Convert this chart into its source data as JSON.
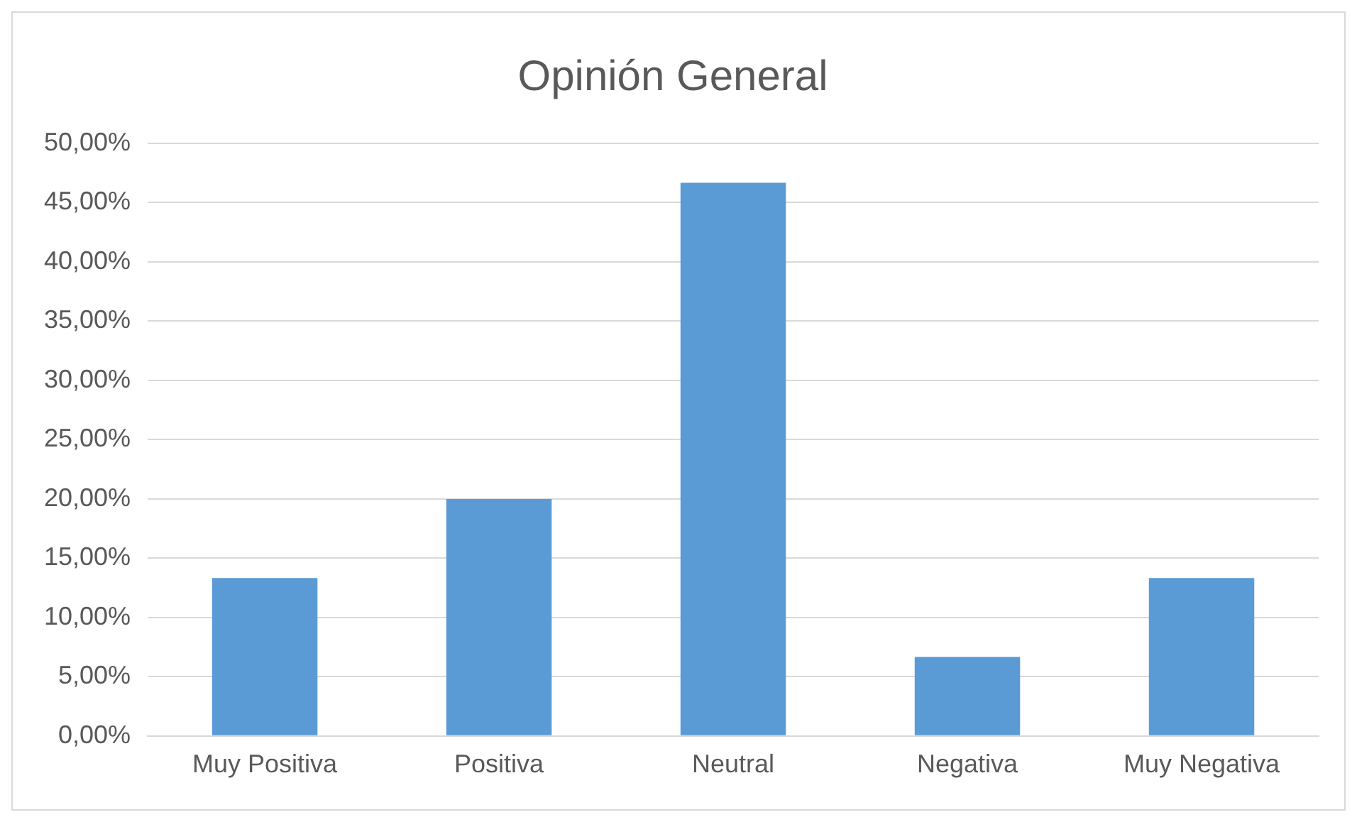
{
  "chart_data": {
    "type": "bar",
    "title": "Opinión General",
    "categories": [
      "Muy Positiva",
      "Positiva",
      "Neutral",
      "Negativa",
      "Muy Negativa"
    ],
    "values": [
      13.33,
      20,
      46.67,
      6.67,
      13.33
    ],
    "color": "#5b9bd5",
    "ylim": [
      0,
      50
    ],
    "yticks": [
      {
        "value": 0,
        "label": "0,00%"
      },
      {
        "value": 5,
        "label": "5,00%"
      },
      {
        "value": 10,
        "label": "10,00%"
      },
      {
        "value": 15,
        "label": "15,00%"
      },
      {
        "value": 20,
        "label": "20,00%"
      },
      {
        "value": 25,
        "label": "25,00%"
      },
      {
        "value": 30,
        "label": "30,00%"
      },
      {
        "value": 35,
        "label": "35,00%"
      },
      {
        "value": 40,
        "label": "40,00%"
      },
      {
        "value": 45,
        "label": "45,00%"
      },
      {
        "value": 50,
        "label": "50,00%"
      }
    ],
    "grid": "y"
  }
}
